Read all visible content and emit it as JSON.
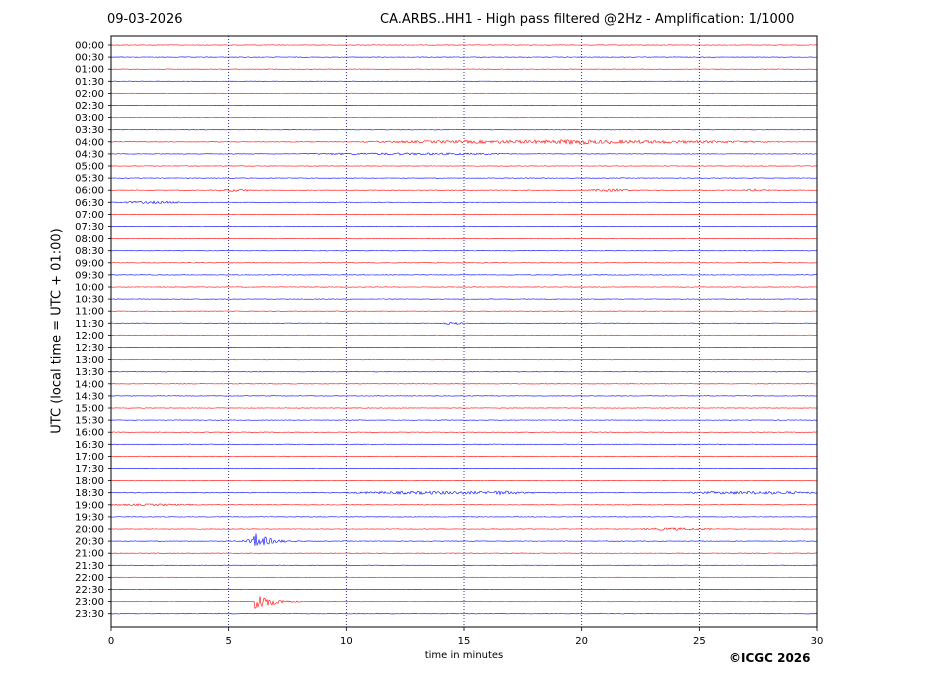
{
  "header": {
    "date": "09-03-2026",
    "title": "CA.ARBS..HH1 - High pass filtered @2Hz - Amplification: 1/1000"
  },
  "footer": {
    "copyright": "©ICGC 2026"
  },
  "colors": {
    "red_trace": "#ff0000",
    "blue_trace": "#0000ff",
    "grid": "#000080",
    "frame": "#000000"
  },
  "chart_data": {
    "type": "line",
    "title": "CA.ARBS..HH1 - High pass filtered @2Hz - Amplification: 1/1000",
    "xlabel": "time in minutes",
    "ylabel": "UTC (local time = UTC + 01:00)",
    "xlim": [
      0,
      30
    ],
    "x_ticks": [
      "0",
      "5",
      "10",
      "15",
      "20",
      "25",
      "30"
    ],
    "grid": "vertical dotted lines every 5 minutes",
    "row_labels": [
      "00:00",
      "00:30",
      "01:00",
      "01:30",
      "02:00",
      "02:30",
      "03:00",
      "03:30",
      "04:00",
      "04:30",
      "05:00",
      "05:30",
      "06:00",
      "06:30",
      "07:00",
      "07:30",
      "08:00",
      "08:30",
      "09:00",
      "09:30",
      "10:00",
      "10:30",
      "11:00",
      "11:30",
      "12:00",
      "12:30",
      "13:00",
      "13:30",
      "14:00",
      "14:30",
      "15:00",
      "15:30",
      "16:00",
      "16:30",
      "17:00",
      "17:30",
      "18:00",
      "18:30",
      "19:00",
      "19:30",
      "20:00",
      "20:30",
      "21:00",
      "21:30",
      "22:00",
      "22:30",
      "23:00",
      "23:30"
    ],
    "row_colors": "alternating red (even rows) and blue (odd rows)",
    "events": [
      {
        "row": "04:00",
        "start_min": 10.5,
        "end_min": 28.5,
        "amplitude": 0.3
      },
      {
        "row": "04:00",
        "start_min": 18.5,
        "end_min": 21.0,
        "amplitude": 0.5
      },
      {
        "row": "04:30",
        "start_min": 8.0,
        "end_min": 17.0,
        "amplitude": 0.12
      },
      {
        "row": "06:00",
        "start_min": 4.5,
        "end_min": 6.0,
        "amplitude": 0.18
      },
      {
        "row": "06:00",
        "start_min": 20.3,
        "end_min": 22.2,
        "amplitude": 0.2
      },
      {
        "row": "06:00",
        "start_min": 26.8,
        "end_min": 28.0,
        "amplitude": 0.15
      },
      {
        "row": "06:30",
        "start_min": 0.5,
        "end_min": 3.2,
        "amplitude": 0.15
      },
      {
        "row": "11:30",
        "start_min": 14.0,
        "end_min": 15.0,
        "amplitude": 0.15
      },
      {
        "row": "18:30",
        "start_min": 10.0,
        "end_min": 18.0,
        "amplitude": 0.25
      },
      {
        "row": "18:30",
        "start_min": 15.5,
        "end_min": 17.5,
        "amplitude": 0.35
      },
      {
        "row": "18:30",
        "start_min": 24.5,
        "end_min": 30.0,
        "amplitude": 0.25
      },
      {
        "row": "19:00",
        "start_min": 0.0,
        "end_min": 3.5,
        "amplitude": 0.1
      },
      {
        "row": "20:00",
        "start_min": 22.5,
        "end_min": 25.5,
        "amplitude": 0.18
      },
      {
        "row": "20:30",
        "start_min": 5.0,
        "end_min": 9.0,
        "amplitude": 2.6,
        "onset_min": 6.0
      },
      {
        "row": "23:00",
        "start_min": 6.0,
        "end_min": 10.0,
        "amplitude": 2.8,
        "onset_min": 6.1
      }
    ]
  }
}
